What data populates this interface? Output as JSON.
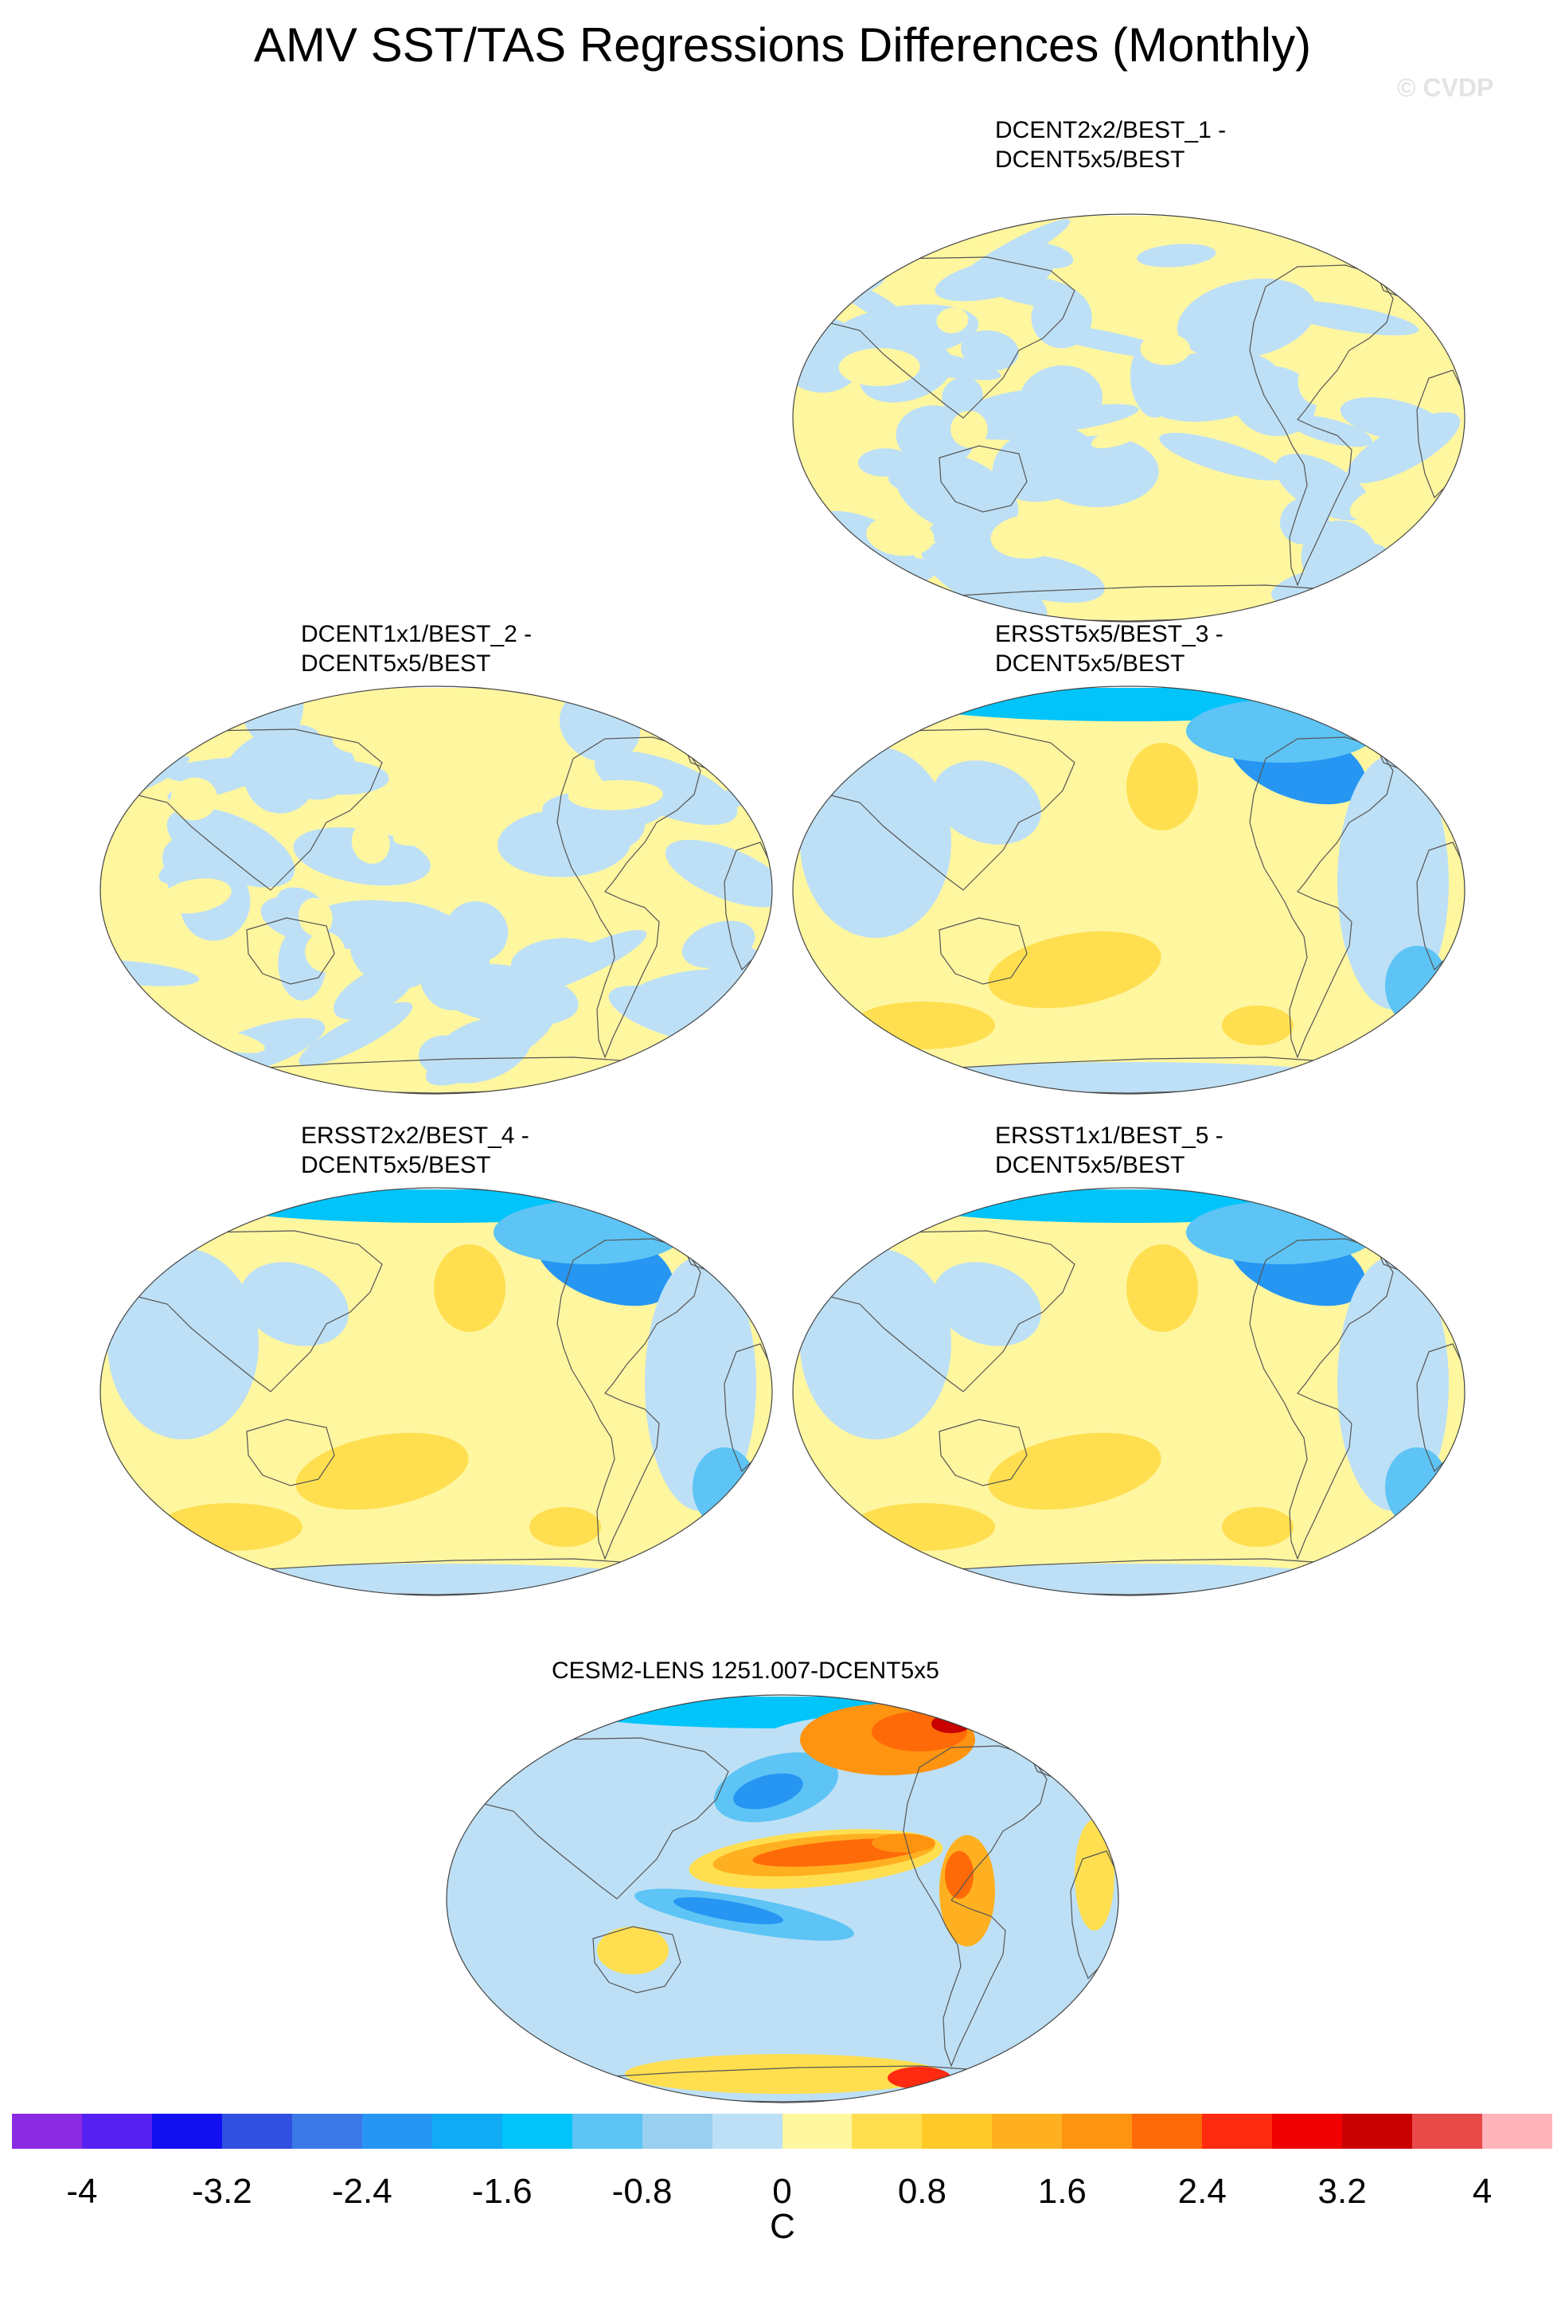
{
  "title": "AMV SST/TAS Regressions Differences (Monthly)",
  "watermark": "© CVDP",
  "panels": [
    {
      "line1": "DCENT2x2/BEST_1 -",
      "line2": "DCENT5x5/BEST",
      "pattern": "mixed"
    },
    {
      "line1": "DCENT1x1/BEST_2 -",
      "line2": "DCENT5x5/BEST",
      "pattern": "mixed"
    },
    {
      "line1": "ERSST5x5/BEST_3 -",
      "line2": "DCENT5x5/BEST",
      "pattern": "ersst"
    },
    {
      "line1": "ERSST2x2/BEST_4 -",
      "line2": "DCENT5x5/BEST",
      "pattern": "ersst"
    },
    {
      "line1": "ERSST1x1/BEST_5 -",
      "line2": "DCENT5x5/BEST",
      "pattern": "ersst"
    },
    {
      "line1": "CESM2-LENS 1251.007-DCENT5x5",
      "line2": "",
      "pattern": "cesm"
    }
  ],
  "colorbar": {
    "colors": [
      "#8a2be2",
      "#5520f2",
      "#1010f0",
      "#2f50e0",
      "#3a78e6",
      "#2696f2",
      "#10aaf5",
      "#00c4fa",
      "#5dc4f5",
      "#99cfef",
      "#bde0f6",
      "#fff6a0",
      "#ffdf50",
      "#ffca28",
      "#ffb020",
      "#ff9410",
      "#ff6a08",
      "#ff2a10",
      "#f00000",
      "#c80000",
      "#e84a4a",
      "#ffb4bc"
    ],
    "tick_labels": [
      "-4",
      "-3.2",
      "-2.4",
      "-1.6",
      "-0.8",
      "0",
      "0.8",
      "1.6",
      "2.4",
      "3.2",
      "4"
    ],
    "units": "C"
  },
  "chart_data": [
    {
      "type": "heatmap",
      "title": "DCENT2x2/BEST_1 - DCENT5x5/BEST",
      "projection": "Winkel tripel (global, Pacific-centered)",
      "value_range": [
        -0.4,
        0.4
      ],
      "colorbar_range": [
        -4,
        4
      ],
      "units": "C"
    },
    {
      "type": "heatmap",
      "title": "DCENT1x1/BEST_2 - DCENT5x5/BEST",
      "projection": "Winkel tripel (global, Pacific-centered)",
      "value_range": [
        -0.4,
        0.4
      ],
      "colorbar_range": [
        -4,
        4
      ],
      "units": "C"
    },
    {
      "type": "heatmap",
      "title": "ERSST5x5/BEST_3 - DCENT5x5/BEST",
      "projection": "Winkel tripel (global, Pacific-centered)",
      "value_range": [
        -1.6,
        0.8
      ],
      "colorbar_range": [
        -4,
        4
      ],
      "units": "C"
    },
    {
      "type": "heatmap",
      "title": "ERSST2x2/BEST_4 - DCENT5x5/BEST",
      "projection": "Winkel tripel (global, Pacific-centered)",
      "value_range": [
        -1.6,
        0.8
      ],
      "colorbar_range": [
        -4,
        4
      ],
      "units": "C"
    },
    {
      "type": "heatmap",
      "title": "ERSST1x1/BEST_5 - DCENT5x5/BEST",
      "projection": "Winkel tripel (global, Pacific-centered)",
      "value_range": [
        -1.6,
        0.8
      ],
      "colorbar_range": [
        -4,
        4
      ],
      "units": "C"
    },
    {
      "type": "heatmap",
      "title": "CESM2-LENS 1251.007-DCENT5x5",
      "projection": "Winkel tripel (global, Pacific-centered)",
      "value_range": [
        -2.0,
        3.6
      ],
      "colorbar_range": [
        -4,
        4
      ],
      "units": "C"
    }
  ]
}
